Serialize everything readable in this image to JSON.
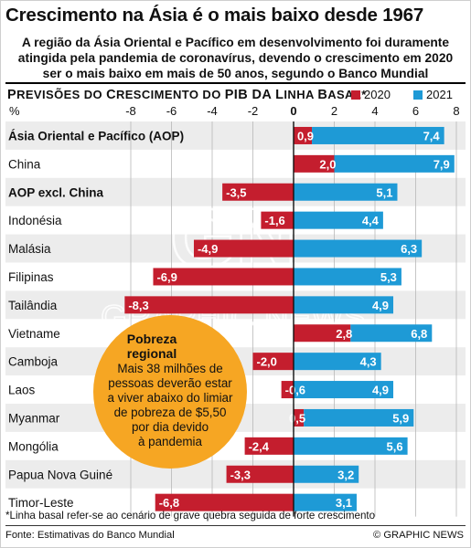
{
  "header": {
    "title": "Crescimento na Ásia é o mais baixo desde 1967",
    "subtitle_lines": [
      "A região da Ásia Oriental e Pacífico em desenvolvimento foi duramente",
      "atingida pela pandemia de coronavírus, devendo o crescimento em 2020",
      "ser o mais baixo em mais de 50 anos, segundo o Banco Mundial"
    ]
  },
  "colors": {
    "series_2020": "#c41e2e",
    "series_2021": "#1e9ad6",
    "row_shade": "#ececec",
    "callout_fill": "#f6a623"
  },
  "chart_data": {
    "type": "bar",
    "orientation": "horizontal",
    "title_prefix": "P",
    "title_rest": "REVISÕES DO ",
    "title_c": "C",
    "title_rest2": "RESCIMENTO DO ",
    "title_pib": "PIB DA ",
    "title_l": "L",
    "title_rest3": "INHA ",
    "title_b": "B",
    "title_rest4": "ASAL*",
    "unit_label": "%",
    "xlim": [
      -10,
      8
    ],
    "ticks": [
      -8,
      -6,
      -4,
      -2,
      0,
      2,
      4,
      6,
      8
    ],
    "tick_labels": [
      "-8",
      "-6",
      "-4",
      "-2",
      "0",
      "2",
      "4",
      "6",
      "8"
    ],
    "legend": [
      "2020",
      "2021"
    ],
    "categories": [
      "Ásia Oriental e Pacífico (AOP)",
      "China",
      "AOP excl. China",
      "Indonésia",
      "Malásia",
      "Filipinas",
      "Tailândia",
      "Vietname",
      "Camboja",
      "Laos",
      "Myanmar",
      "Mongólia",
      "Papua Nova Guiné",
      "Timor-Leste"
    ],
    "bold_categories": [
      0,
      2
    ],
    "series": [
      {
        "name": "2020",
        "values": [
          0.9,
          2.0,
          -3.5,
          -1.6,
          -4.9,
          -6.9,
          -8.3,
          2.8,
          -2.0,
          -0.6,
          0.5,
          -2.4,
          -3.3,
          -6.8
        ],
        "labels": [
          "0,9",
          "2,0",
          "-3,5",
          "-1,6",
          "-4,9",
          "-6,9",
          "-8,3",
          "2,8",
          "-2,0",
          "-0,6",
          "0,5",
          "-2,4",
          "-3,3",
          "-6,8"
        ]
      },
      {
        "name": "2021",
        "values": [
          7.4,
          7.9,
          5.1,
          4.4,
          6.3,
          5.3,
          4.9,
          6.8,
          4.3,
          4.9,
          5.9,
          5.6,
          3.2,
          3.1
        ],
        "labels": [
          "7,4",
          "7,9",
          "5,1",
          "4,4",
          "6,3",
          "5,3",
          "4,9",
          "6,8",
          "4,3",
          "4,9",
          "5,9",
          "5,6",
          "3,2",
          "3,1"
        ]
      }
    ],
    "callout": {
      "title_lines": [
        "Pobreza",
        "regional"
      ],
      "body_lines": [
        "Mais 38 milhões de",
        "pessoas deverão estar",
        "a viver abaixo do limiar",
        "de pobreza de $5,50",
        "por dia devido",
        "à pandemia"
      ]
    },
    "watermark": [
      "GN",
      "GRAPHIC NEWS"
    ]
  },
  "footer": {
    "footnote": "*Linha basal refer-se ao cenário de grave quebra seguida de forte crescimento",
    "source": "Fonte: Estimativas do Banco Mundial",
    "credit": "© GRAPHIC NEWS"
  }
}
